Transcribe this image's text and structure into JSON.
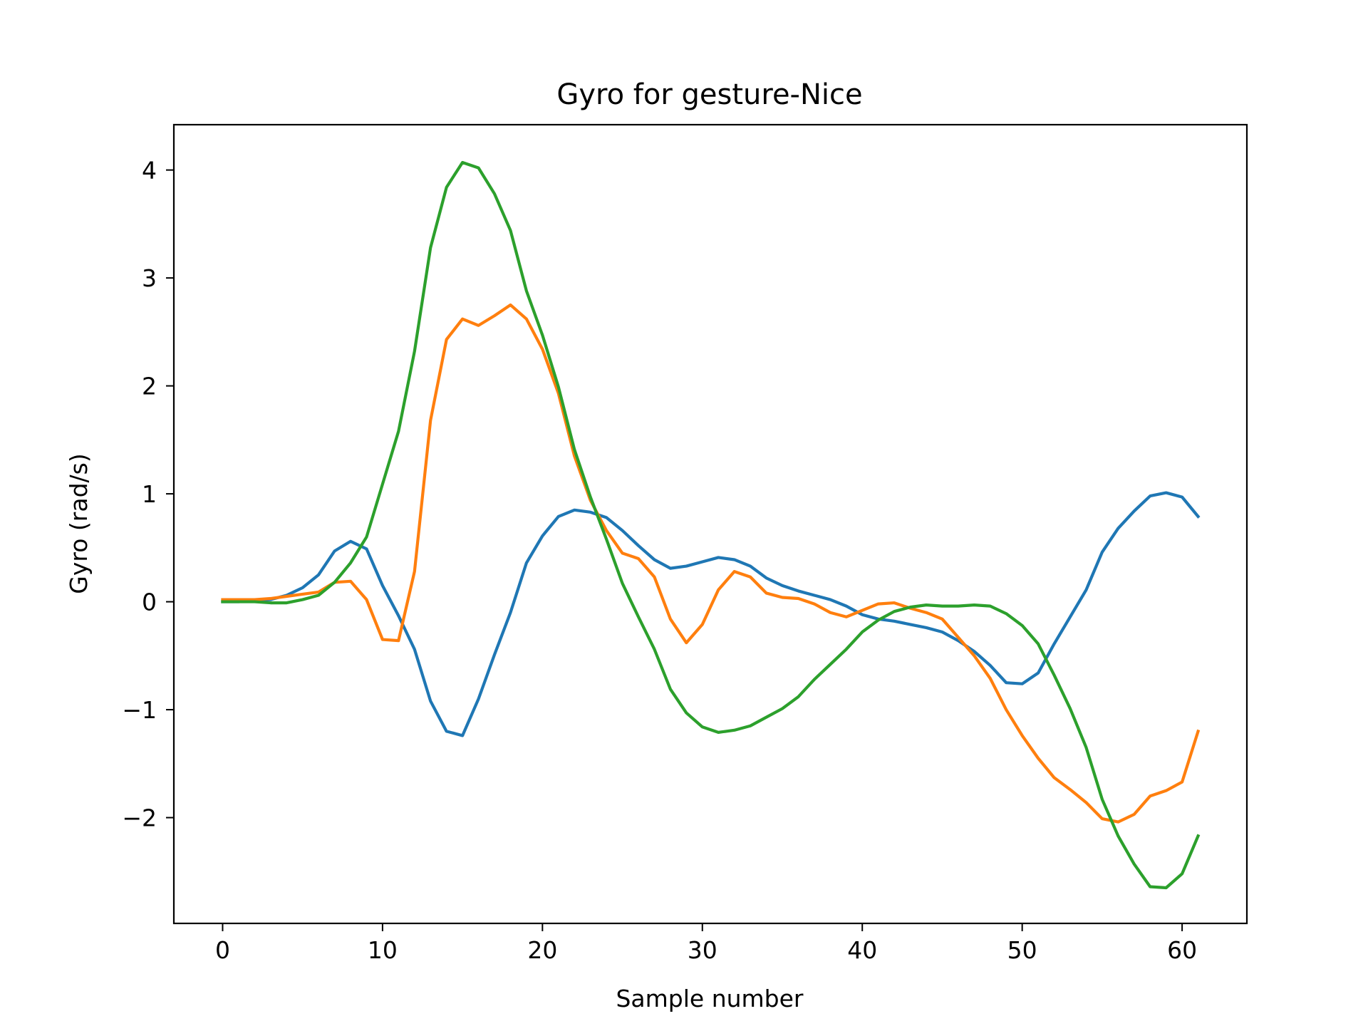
{
  "chart_data": {
    "type": "line",
    "title": "Gyro for gesture-Nice",
    "xlabel": "Sample number",
    "ylabel": "Gyro  (rad/s)",
    "xlim": [
      -3.05,
      64.05
    ],
    "ylim": [
      -2.98,
      4.42
    ],
    "xticks": [
      0,
      10,
      20,
      30,
      40,
      50,
      60
    ],
    "xtick_labels": [
      "0",
      "10",
      "20",
      "30",
      "40",
      "50",
      "60"
    ],
    "yticks": [
      -2,
      -1,
      0,
      1,
      2,
      3,
      4
    ],
    "ytick_labels": [
      "−2",
      "−1",
      "0",
      "1",
      "2",
      "3",
      "4"
    ],
    "grid": false,
    "legend": "none",
    "x": [
      0,
      1,
      2,
      3,
      4,
      5,
      6,
      7,
      8,
      9,
      10,
      11,
      12,
      13,
      14,
      15,
      16,
      17,
      18,
      19,
      20,
      21,
      22,
      23,
      24,
      25,
      26,
      27,
      28,
      29,
      30,
      31,
      32,
      33,
      34,
      35,
      36,
      37,
      38,
      39,
      40,
      41,
      42,
      43,
      44,
      45,
      46,
      47,
      48,
      49,
      50,
      51,
      52,
      53,
      54,
      55,
      56,
      57,
      58,
      59,
      60,
      61
    ],
    "series": [
      {
        "color": "#1f77b4",
        "values": [
          0.0,
          0.0,
          0.01,
          0.02,
          0.06,
          0.13,
          0.25,
          0.47,
          0.56,
          0.49,
          0.15,
          -0.13,
          -0.44,
          -0.92,
          -1.2,
          -1.24,
          -0.9,
          -0.49,
          -0.1,
          0.36,
          0.61,
          0.79,
          0.85,
          0.83,
          0.78,
          0.66,
          0.52,
          0.39,
          0.31,
          0.33,
          0.37,
          0.41,
          0.39,
          0.33,
          0.22,
          0.15,
          0.1,
          0.06,
          0.02,
          -0.04,
          -0.12,
          -0.16,
          -0.18,
          -0.21,
          -0.24,
          -0.28,
          -0.36,
          -0.46,
          -0.59,
          -0.75,
          -0.76,
          -0.66,
          -0.39,
          -0.14,
          0.11,
          0.46,
          0.68,
          0.84,
          0.98,
          1.01,
          0.97,
          0.79
        ]
      },
      {
        "color": "#ff7f0e",
        "values": [
          0.02,
          0.02,
          0.02,
          0.03,
          0.05,
          0.07,
          0.09,
          0.18,
          0.19,
          0.02,
          -0.35,
          -0.36,
          0.28,
          1.68,
          2.43,
          2.62,
          2.56,
          2.65,
          2.75,
          2.62,
          2.34,
          1.93,
          1.35,
          0.94,
          0.66,
          0.45,
          0.4,
          0.23,
          -0.16,
          -0.38,
          -0.21,
          0.11,
          0.28,
          0.23,
          0.08,
          0.04,
          0.03,
          -0.02,
          -0.1,
          -0.14,
          -0.08,
          -0.02,
          -0.01,
          -0.06,
          -0.1,
          -0.16,
          -0.33,
          -0.5,
          -0.71,
          -1.0,
          -1.24,
          -1.45,
          -1.63,
          -1.74,
          -1.86,
          -2.01,
          -2.04,
          -1.97,
          -1.8,
          -1.75,
          -1.67,
          -1.2
        ]
      },
      {
        "color": "#2ca02c",
        "values": [
          0.0,
          0.0,
          0.0,
          -0.01,
          -0.01,
          0.02,
          0.06,
          0.18,
          0.36,
          0.6,
          1.09,
          1.58,
          2.32,
          3.28,
          3.84,
          4.07,
          4.02,
          3.78,
          3.44,
          2.88,
          2.47,
          1.99,
          1.41,
          0.97,
          0.58,
          0.17,
          -0.14,
          -0.44,
          -0.81,
          -1.03,
          -1.16,
          -1.21,
          -1.19,
          -1.15,
          -1.07,
          -0.99,
          -0.88,
          -0.72,
          -0.58,
          -0.44,
          -0.28,
          -0.17,
          -0.09,
          -0.05,
          -0.03,
          -0.04,
          -0.04,
          -0.03,
          -0.04,
          -0.11,
          -0.22,
          -0.39,
          -0.68,
          -0.99,
          -1.35,
          -1.83,
          -2.17,
          -2.43,
          -2.64,
          -2.65,
          -2.52,
          -2.17
        ]
      }
    ]
  }
}
